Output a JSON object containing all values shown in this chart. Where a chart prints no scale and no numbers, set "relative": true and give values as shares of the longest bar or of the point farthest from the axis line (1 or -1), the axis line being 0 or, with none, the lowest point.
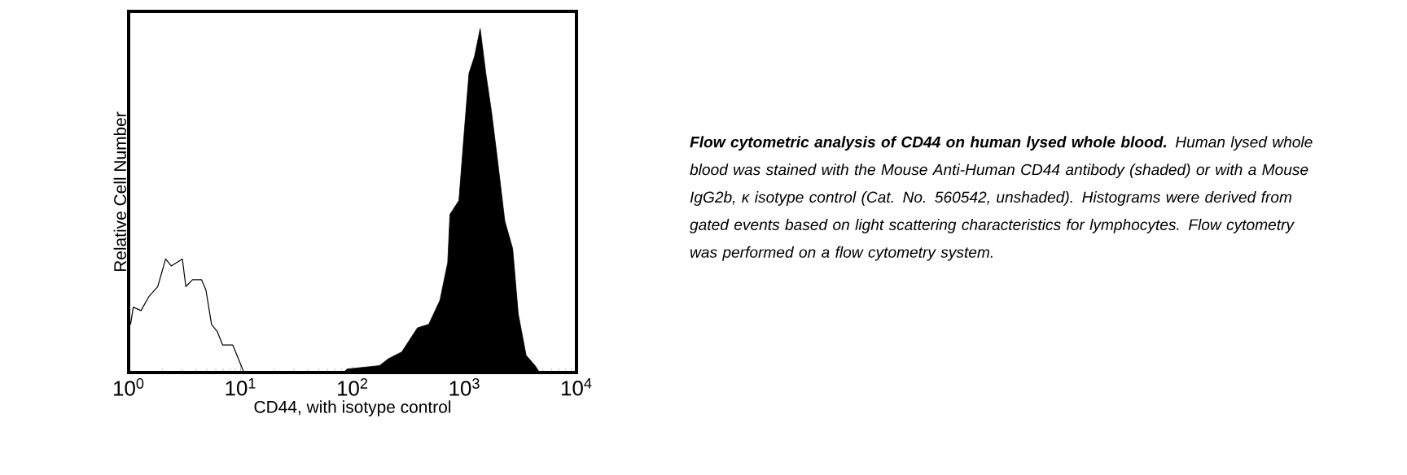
{
  "chart_data": {
    "type": "area",
    "xlabel": "CD44, with isotype control",
    "ylabel": "Relative Cell Number",
    "annotations": [
      "**Flow cytometric analysis of CD44 on human lysed whole blood.** Human lysed whole blood was stained with the Mouse Anti-Human CD44 antibody (shaded) or with a Mouse IgG2b, κ isotype control (Cat. No. 560542, unshaded). Histograms were derived from gated events based on light scattering characteristics for lymphocytes. Flow cytometry was performed on a flow cytometry system."
    ],
    "relative": true,
    "log": "x",
    "xlim": [
      1,
      10000
    ],
    "xticks": [
      {
        "value": 1,
        "label": "10$^{0}$"
      },
      {
        "value": 10,
        "label": "10$^{1}$"
      },
      {
        "value": 100,
        "label": "10$^{2}$"
      },
      {
        "value": 1000,
        "label": "10$^{3}$"
      },
      {
        "value": 10000,
        "label": "10$^{4}$"
      }
    ],
    "series": [
      {
        "color": "#000000",
        "x": [
          83.2,
          89.1,
          174,
          209,
          275,
          380,
          479,
          603,
          708,
          741,
          891,
          1000,
          1096,
          1230,
          1380,
          1549,
          1738,
          1950,
          2291,
          2692,
          3020,
          3548,
          4266,
          4677
        ],
        "values": [
          0,
          0.01,
          0.02,
          0.04,
          0.06,
          0.13,
          0.14,
          0.21,
          0.32,
          0.46,
          0.5,
          0.71,
          0.87,
          0.92,
          1.0,
          0.87,
          0.76,
          0.63,
          0.44,
          0.36,
          0.17,
          0.05,
          0.02,
          0
        ]
      },
      {
        "type": "line",
        "color": "#000000",
        "x": [
          1.04,
          1.1,
          1.29,
          1.51,
          1.82,
          2.14,
          2.4,
          2.69,
          3.02,
          3.24,
          3.72,
          4.47,
          4.9,
          5.5,
          6.17,
          6.92,
          7.76,
          8.51,
          9.55,
          10.7,
          12.0,
          15.8
        ],
        "values": [
          0.14,
          0.19,
          0.18,
          0.22,
          0.25,
          0.33,
          0.31,
          0.32,
          0.33,
          0.25,
          0.27,
          0.27,
          0.24,
          0.14,
          0.12,
          0.08,
          0.08,
          0.08,
          0.04,
          0,
          0,
          0
        ]
      }
    ]
  }
}
